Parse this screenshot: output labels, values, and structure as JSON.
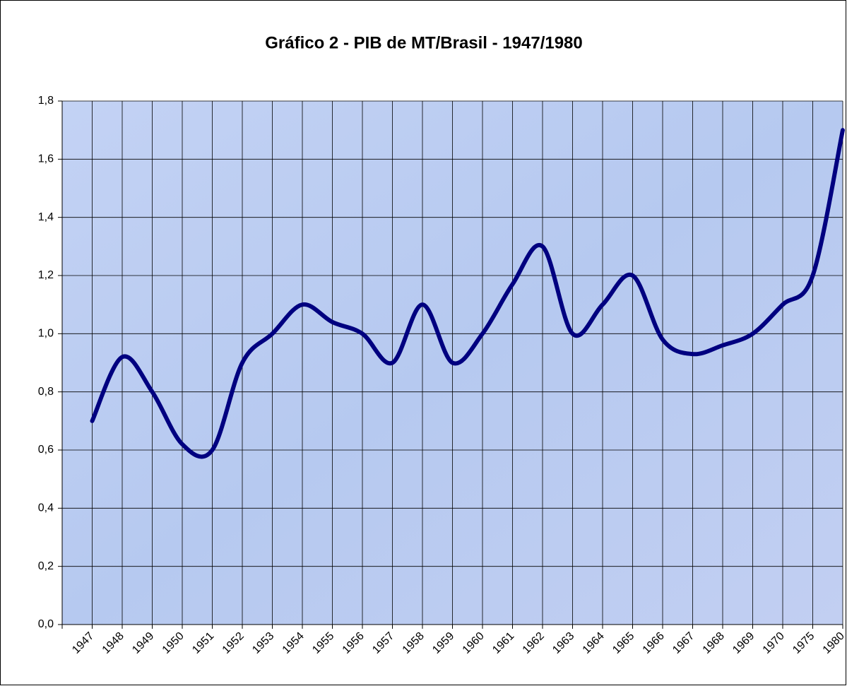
{
  "chart_data": {
    "type": "line",
    "title": "Gráfico 2 - PIB de MT/Brasil - 1947/1980",
    "categories": [
      "1947",
      "1948",
      "1949",
      "1950",
      "1951",
      "1952",
      "1953",
      "1954",
      "1955",
      "1956",
      "1957",
      "1958",
      "1959",
      "1960",
      "1961",
      "1962",
      "1963",
      "1964",
      "1965",
      "1966",
      "1967",
      "1968",
      "1969",
      "1970",
      "1975",
      "1980"
    ],
    "series": [
      {
        "color": "#000080",
        "values": [
          0.7,
          0.92,
          0.8,
          0.62,
          0.6,
          0.9,
          1.0,
          1.1,
          1.04,
          1.0,
          0.9,
          1.1,
          0.9,
          1.0,
          1.17,
          1.3,
          1.0,
          1.1,
          1.2,
          0.98,
          0.93,
          0.96,
          1.0,
          1.1,
          1.2,
          1.7
        ]
      }
    ],
    "ylim": [
      0,
      1.8
    ],
    "yticks": [
      {
        "value": 0,
        "label": "0,0"
      },
      {
        "value": 0.2,
        "label": "0,2"
      },
      {
        "value": 0.4,
        "label": "0,4"
      },
      {
        "value": 0.6,
        "label": "0,6"
      },
      {
        "value": 0.8,
        "label": "0,8"
      },
      {
        "value": 1.0,
        "label": "1,0"
      },
      {
        "value": 1.2,
        "label": "1,2"
      },
      {
        "value": 1.4,
        "label": "1,4"
      },
      {
        "value": 1.6,
        "label": "1,6"
      },
      {
        "value": 1.8,
        "label": "1,8"
      }
    ],
    "grid": true
  }
}
